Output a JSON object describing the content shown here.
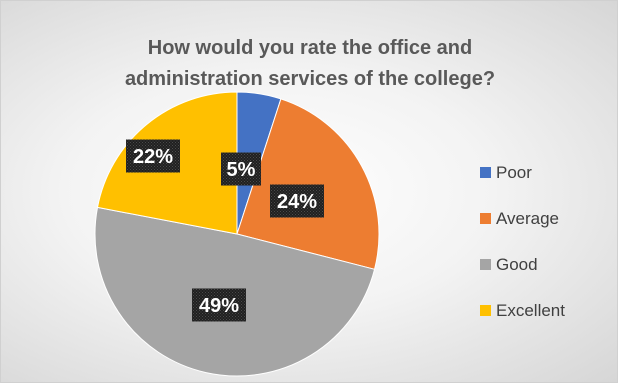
{
  "chart_data": {
    "type": "pie",
    "title_lines": [
      "How would you rate the office and",
      "administration services of the college?"
    ],
    "categories": [
      "Poor",
      "Average",
      "Good",
      "Excellent"
    ],
    "values": [
      5,
      24,
      49,
      22
    ],
    "data_labels": [
      "5%",
      "24%",
      "49%",
      "22%"
    ],
    "colors": [
      "#4472C4",
      "#ED7D31",
      "#A5A5A5",
      "#FFC000"
    ],
    "legend_position": "right"
  }
}
